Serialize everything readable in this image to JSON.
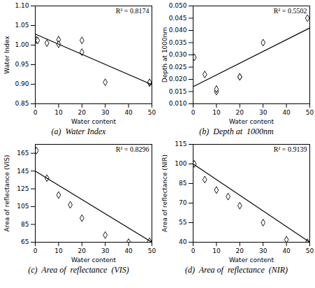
{
  "chart_data": [
    {
      "type": "scatter",
      "title": "(a)  Water Index",
      "xlabel": "Water content",
      "ylabel": "Water Index",
      "annotation": "R² = 0.8174",
      "series": [
        {
          "type": "scatter",
          "marker": "diamond",
          "x": [
            0.5,
            1,
            5,
            10,
            10,
            20,
            20,
            30,
            49,
            49
          ],
          "values": [
            1.013,
            1.012,
            1.005,
            1.014,
            1.002,
            1.012,
            0.982,
            0.905,
            0.903,
            0.905
          ]
        },
        {
          "type": "line",
          "x": [
            0,
            50
          ],
          "values": [
            1.028,
            0.899
          ]
        }
      ],
      "xlim": [
        0,
        50
      ],
      "xticks": [
        0,
        10,
        20,
        30,
        40,
        50
      ],
      "ylim": [
        0.85,
        1.1
      ],
      "yticks": [
        {
          "value": 0.85,
          "label": "0.85"
        },
        {
          "value": 0.9,
          "label": "0.90"
        },
        {
          "value": 0.95,
          "label": "0.95"
        },
        {
          "value": 1.0,
          "label": "1.00"
        },
        {
          "value": 1.05,
          "label": "1.05"
        },
        {
          "value": 1.1,
          "label": "1.10"
        }
      ]
    },
    {
      "type": "scatter",
      "title": "(b)  Depth at  1000nm",
      "xlabel": "Water content",
      "ylabel": "Depth at 1000nm",
      "annotation": "R² = 0.5502",
      "series": [
        {
          "type": "scatter",
          "marker": "diamond",
          "x": [
            0.5,
            5,
            10,
            10,
            20,
            20,
            30,
            49
          ],
          "values": [
            0.029,
            0.022,
            0.015,
            0.016,
            0.021,
            0.021,
            0.035,
            0.045
          ]
        },
        {
          "type": "line",
          "x": [
            0,
            50
          ],
          "values": [
            0.017,
            0.041
          ]
        }
      ],
      "xlim": [
        0,
        50
      ],
      "xticks": [
        0,
        10,
        20,
        30,
        40,
        50
      ],
      "ylim": [
        0.01,
        0.05
      ],
      "yticks": [
        {
          "value": 0.01,
          "label": "0.010"
        },
        {
          "value": 0.015,
          "label": "0.015"
        },
        {
          "value": 0.02,
          "label": "0.020"
        },
        {
          "value": 0.025,
          "label": "0.025"
        },
        {
          "value": 0.03,
          "label": "0.030"
        },
        {
          "value": 0.035,
          "label": "0.035"
        },
        {
          "value": 0.04,
          "label": "0.040"
        },
        {
          "value": 0.045,
          "label": "0.045"
        },
        {
          "value": 0.05,
          "label": "0.050"
        }
      ]
    },
    {
      "type": "scatter",
      "title": "(c)  Area of  reflectance  (VIS)",
      "xlabel": "Water content",
      "ylabel": "Area of reflectance (VIS)",
      "annotation": "R² = 0.8296",
      "series": [
        {
          "type": "scatter",
          "marker": "diamond",
          "x": [
            0.5,
            5,
            10,
            15,
            20,
            30,
            40,
            49
          ],
          "values": [
            168,
            137,
            118,
            107,
            92,
            73,
            65,
            66
          ]
        },
        {
          "type": "line",
          "x": [
            0,
            50
          ],
          "values": [
            145,
            65
          ]
        }
      ],
      "xlim": [
        0,
        50
      ],
      "xticks": [
        0,
        10,
        20,
        30,
        40,
        50
      ],
      "ylim": [
        65,
        175
      ],
      "yticks": [
        65,
        85,
        105,
        125,
        145,
        165
      ]
    },
    {
      "type": "scatter",
      "title": "(d)  Area of  reflectance  (NIR)",
      "xlabel": "Water content",
      "ylabel": "Area of reflectance (NIR)",
      "annotation": "R² = 0.9139",
      "series": [
        {
          "type": "scatter",
          "marker": "diamond",
          "x": [
            0.5,
            5,
            10,
            15,
            20,
            30,
            40,
            49
          ],
          "values": [
            100,
            88,
            80,
            75,
            68,
            55,
            42,
            40
          ]
        },
        {
          "type": "line",
          "x": [
            0,
            50
          ],
          "values": [
            100,
            40
          ]
        }
      ],
      "xlim": [
        0,
        50
      ],
      "xticks": [
        0,
        10,
        20,
        30,
        40,
        50
      ],
      "ylim": [
        40,
        115
      ],
      "yticks": [
        40,
        55,
        70,
        85,
        100,
        115
      ]
    }
  ]
}
